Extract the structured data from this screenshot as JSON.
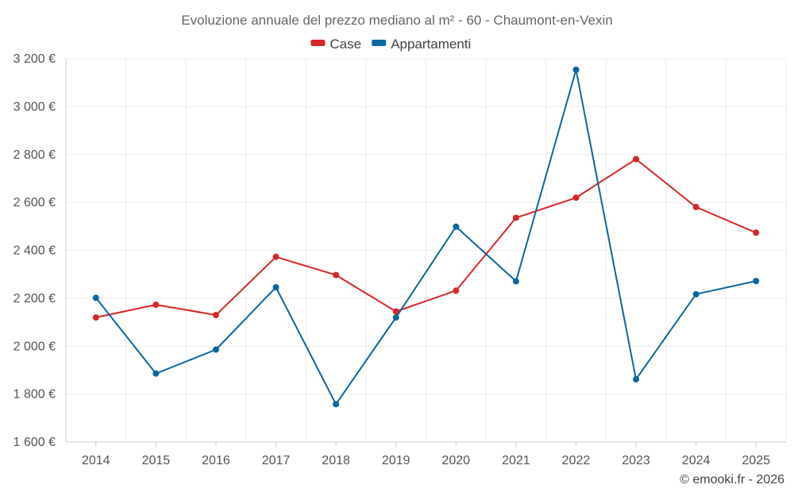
{
  "chart_data": {
    "type": "line",
    "title": "Evoluzione annuale del prezzo mediano al m² - 60 - Chaumont-en-Vexin",
    "categories": [
      "2014",
      "2015",
      "2016",
      "2017",
      "2018",
      "2019",
      "2020",
      "2021",
      "2022",
      "2023",
      "2024",
      "2025"
    ],
    "series": [
      {
        "name": "Case",
        "color": "#d62728",
        "values": [
          2120,
          2173,
          2130,
          2373,
          2297,
          2145,
          2232,
          2536,
          2620,
          2781,
          2581,
          2474
        ]
      },
      {
        "name": "Appartamenti",
        "color": "#0b66a0",
        "values": [
          2202,
          1886,
          1986,
          2246,
          1758,
          2120,
          2499,
          2271,
          3154,
          1862,
          2217,
          2272
        ]
      }
    ],
    "ylim": [
      1600,
      3200
    ],
    "yticks": [
      1600,
      1800,
      2000,
      2200,
      2400,
      2600,
      2800,
      3000,
      3200
    ],
    "ytick_labels": [
      "1 600 €",
      "1 800 €",
      "2 000 €",
      "2 200 €",
      "2 400 €",
      "2 600 €",
      "2 800 €",
      "3 000 €",
      "3 200 €"
    ],
    "xlabel": "",
    "ylabel": "",
    "legend_position": "top-center",
    "grid": true
  },
  "credit": "© emooki.fr - 2026"
}
